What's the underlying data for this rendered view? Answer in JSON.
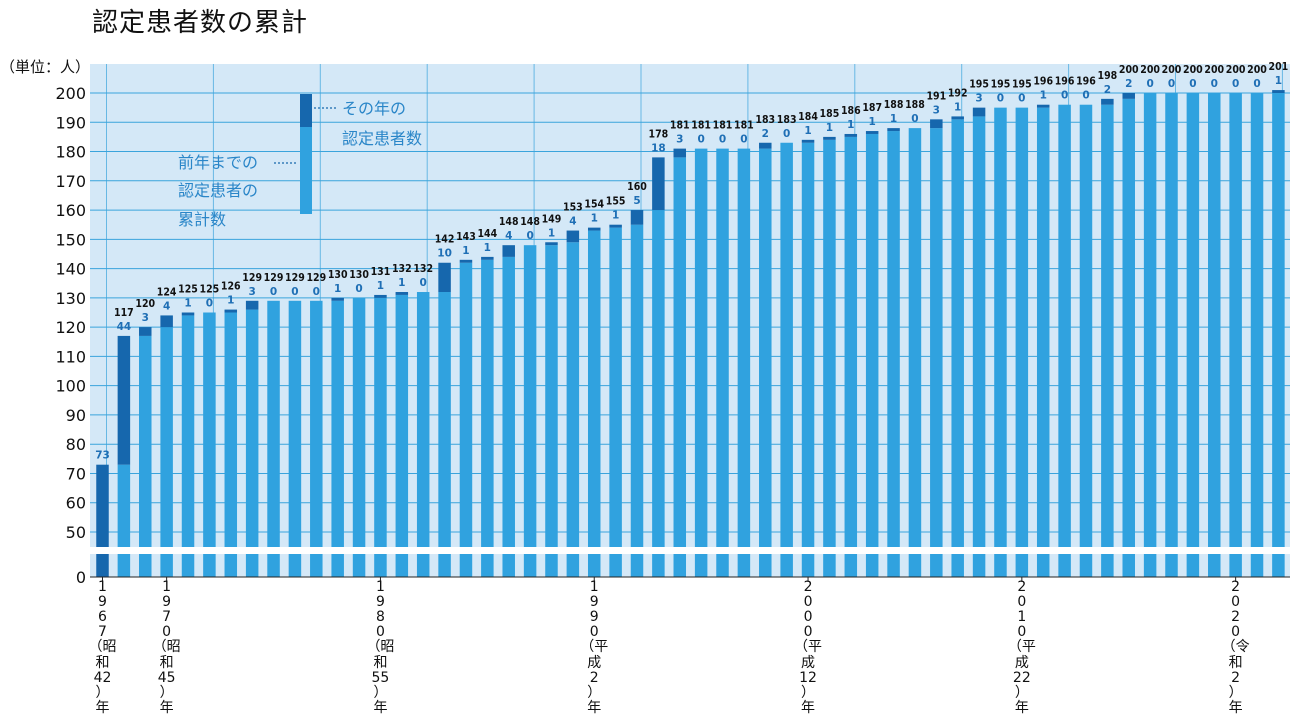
{
  "title": "認定患者数の累計",
  "unit_label": "（単位：人）",
  "legend": {
    "new_line1": "その年の",
    "new_line2": "認定患者数",
    "cum_line1": "前年までの",
    "cum_line2": "認定患者の",
    "cum_line3": "累計数"
  },
  "colors": {
    "plot_bg": "#d4e8f7",
    "grid": "#3aa4dc",
    "cumulative_bar": "#30a2df",
    "new_bar": "#1667ad",
    "new_label": "#1f6fb5"
  },
  "chart_data": {
    "type": "bar",
    "stacked": true,
    "years": [
      1967,
      1968,
      1969,
      1970,
      1971,
      1972,
      1973,
      1974,
      1975,
      1976,
      1977,
      1978,
      1979,
      1980,
      1981,
      1982,
      1983,
      1984,
      1985,
      1986,
      1987,
      1988,
      1989,
      1990,
      1991,
      1992,
      1993,
      1994,
      1995,
      1996,
      1997,
      1998,
      1999,
      2000,
      2001,
      2002,
      2003,
      2004,
      2005,
      2006,
      2007,
      2008,
      2009,
      2010,
      2011,
      2012,
      2013,
      2014,
      2015,
      2016,
      2017,
      2018,
      2019,
      2020,
      2021,
      2022
    ],
    "totals": [
      73,
      117,
      120,
      124,
      125,
      125,
      126,
      129,
      129,
      129,
      129,
      130,
      130,
      131,
      132,
      132,
      142,
      143,
      144,
      148,
      148,
      149,
      153,
      154,
      155,
      160,
      178,
      181,
      181,
      181,
      181,
      183,
      183,
      184,
      185,
      186,
      187,
      188,
      188,
      191,
      192,
      195,
      195,
      195,
      196,
      196,
      196,
      198,
      200,
      200,
      200,
      200,
      200,
      200,
      200,
      201
    ],
    "new_per_year": [
      73,
      44,
      3,
      4,
      1,
      0,
      1,
      3,
      0,
      0,
      0,
      1,
      0,
      1,
      1,
      0,
      10,
      1,
      1,
      4,
      0,
      1,
      4,
      1,
      1,
      5,
      18,
      3,
      0,
      0,
      0,
      2,
      0,
      1,
      1,
      1,
      1,
      1,
      0,
      3,
      1,
      3,
      0,
      0,
      1,
      0,
      0,
      2,
      2,
      0,
      0,
      0,
      0,
      0,
      0,
      1
    ],
    "series": [
      {
        "name": "前年までの認定患者の累計数"
      },
      {
        "name": "その年の認定患者数"
      }
    ],
    "y_ticks": [
      0,
      50,
      60,
      70,
      80,
      90,
      100,
      110,
      120,
      130,
      140,
      150,
      160,
      170,
      180,
      190,
      200
    ],
    "y_axis_break": true,
    "grid": true,
    "x_labels": [
      {
        "year": 1967,
        "chars": [
          "1",
          "9",
          "6",
          "7",
          "（昭",
          "和",
          "42",
          "）",
          "年"
        ]
      },
      {
        "year": 1970,
        "chars": [
          "1",
          "9",
          "7",
          "0",
          "（昭",
          "和",
          "45",
          "）",
          "年"
        ]
      },
      {
        "year": 1980,
        "chars": [
          "1",
          "9",
          "8",
          "0",
          "（昭",
          "和",
          "55",
          "）",
          "年"
        ]
      },
      {
        "year": 1990,
        "chars": [
          "1",
          "9",
          "9",
          "0",
          "（平",
          "成",
          "2",
          "）",
          "年"
        ]
      },
      {
        "year": 2000,
        "chars": [
          "2",
          "0",
          "0",
          "0",
          "（平",
          "成",
          "12",
          "）",
          "年"
        ]
      },
      {
        "year": 2010,
        "chars": [
          "2",
          "0",
          "1",
          "0",
          "（平",
          "成",
          "22",
          "）",
          "年"
        ]
      },
      {
        "year": 2020,
        "chars": [
          "2",
          "0",
          "2",
          "0",
          "（令",
          "和",
          "2",
          "）",
          "年"
        ]
      }
    ]
  }
}
